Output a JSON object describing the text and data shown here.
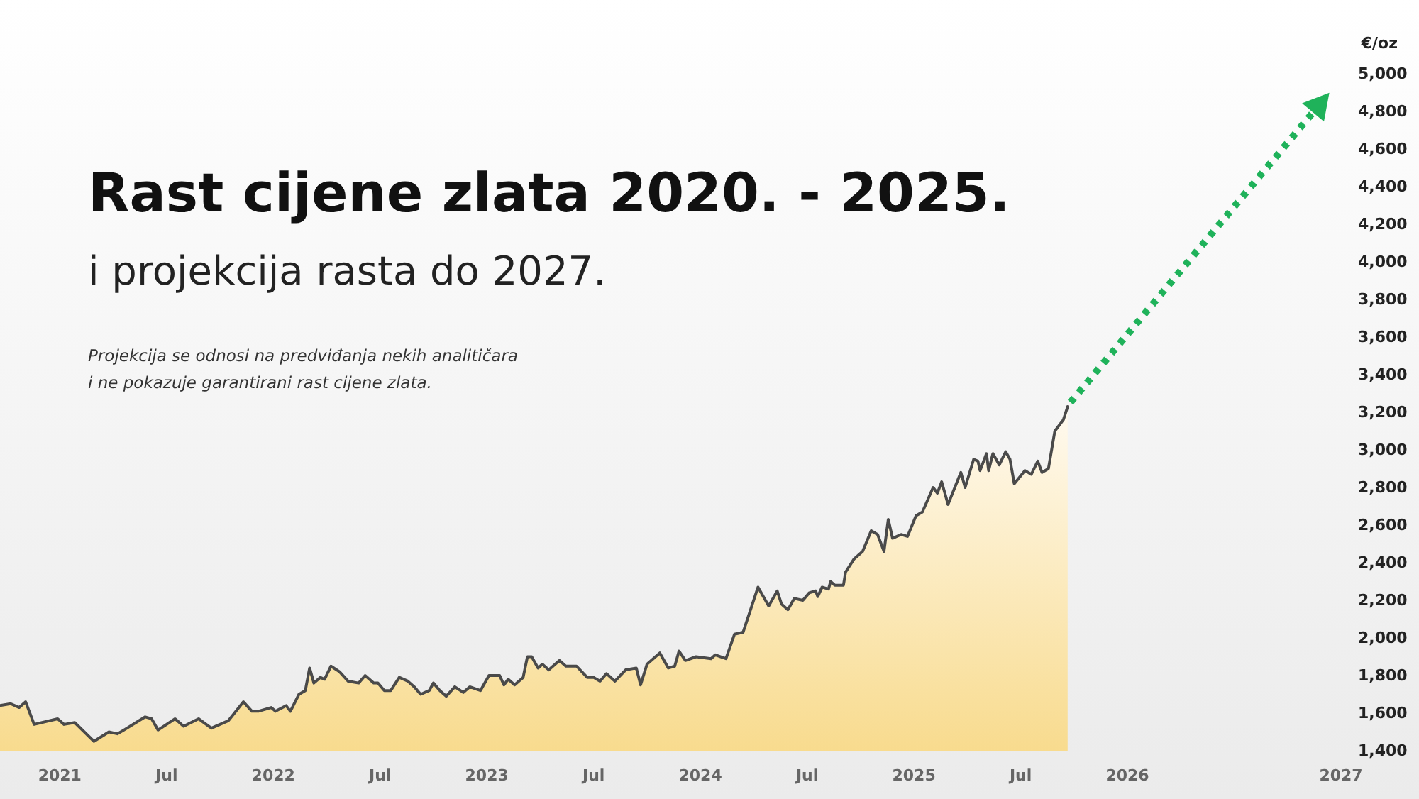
{
  "chart_data": {
    "type": "area",
    "title": "Rast cijene zlata 2020. - 2025.",
    "subtitle": "i projekcija rasta do 2027.",
    "annotations": [
      "Projekcija se odnosi na predviđanja nekih analitičara\ni ne pokazuje garantirani rast cijene zlata."
    ],
    "ylabel": "€/oz",
    "xlim": [
      2020.72,
      2027
    ],
    "xticks": [
      {
        "value": 2021,
        "label": "2021"
      },
      {
        "value": 2021.5,
        "label": "Jul"
      },
      {
        "value": 2022,
        "label": "2022"
      },
      {
        "value": 2022.5,
        "label": "Jul"
      },
      {
        "value": 2023,
        "label": "2023"
      },
      {
        "value": 2023.5,
        "label": "Jul"
      },
      {
        "value": 2024,
        "label": "2024"
      },
      {
        "value": 2024.5,
        "label": "Jul"
      },
      {
        "value": 2025,
        "label": "2025"
      },
      {
        "value": 2025.5,
        "label": "Jul"
      },
      {
        "value": 2026,
        "label": "2026"
      },
      {
        "value": 2027,
        "label": "2027"
      }
    ],
    "ylim": [
      1400,
      5000
    ],
    "yticks": [
      {
        "value": 1400,
        "label": "1,400"
      },
      {
        "value": 1600,
        "label": "1,600"
      },
      {
        "value": 1800,
        "label": "1,800"
      },
      {
        "value": 2000,
        "label": "2,000"
      },
      {
        "value": 2200,
        "label": "2,200"
      },
      {
        "value": 2400,
        "label": "2,400"
      },
      {
        "value": 2600,
        "label": "2,600"
      },
      {
        "value": 2800,
        "label": "2,800"
      },
      {
        "value": 3000,
        "label": "3,000"
      },
      {
        "value": 3200,
        "label": "3,200"
      },
      {
        "value": 3400,
        "label": "3,400"
      },
      {
        "value": 3600,
        "label": "3,600"
      },
      {
        "value": 3800,
        "label": "3,800"
      },
      {
        "value": 4000,
        "label": "4,000"
      },
      {
        "value": 4200,
        "label": "4,200"
      },
      {
        "value": 4400,
        "label": "4,400"
      },
      {
        "value": 4600,
        "label": "4,600"
      },
      {
        "value": 4800,
        "label": "4,800"
      },
      {
        "value": 5000,
        "label": "5,000"
      }
    ],
    "grid": false,
    "marker": "none",
    "series": [
      {
        "color": "#4a4a4a",
        "x": [
          2020.72,
          2020.77,
          2020.81,
          2020.84,
          2020.88,
          2020.99,
          2021.02,
          2021.07,
          2021.16,
          2021.23,
          2021.27,
          2021.3,
          2021.4,
          2021.43,
          2021.46,
          2021.54,
          2021.58,
          2021.65,
          2021.71,
          2021.79,
          2021.86,
          2021.9,
          2021.93,
          2021.99,
          2022.01,
          2022.06,
          2022.08,
          2022.12,
          2022.15,
          2022.17,
          2022.19,
          2022.22,
          2022.24,
          2022.27,
          2022.31,
          2022.35,
          2022.4,
          2022.43,
          2022.47,
          2022.49,
          2022.52,
          2022.55,
          2022.59,
          2022.63,
          2022.66,
          2022.69,
          2022.73,
          2022.75,
          2022.78,
          2022.81,
          2022.85,
          2022.89,
          2022.92,
          2022.97,
          2023.01,
          2023.06,
          2023.08,
          2023.1,
          2023.13,
          2023.17,
          2023.19,
          2023.21,
          2023.24,
          2023.26,
          2023.29,
          2023.34,
          2023.37,
          2023.42,
          2023.47,
          2023.5,
          2023.53,
          2023.56,
          2023.6,
          2023.65,
          2023.7,
          2023.72,
          2023.75,
          2023.81,
          2023.85,
          2023.88,
          2023.9,
          2023.93,
          2023.98,
          2024.05,
          2024.07,
          2024.12,
          2024.16,
          2024.2,
          2024.27,
          2024.32,
          2024.36,
          2024.38,
          2024.41,
          2024.44,
          2024.48,
          2024.51,
          2024.54,
          2024.55,
          2024.57,
          2024.6,
          2024.61,
          2024.63,
          2024.67,
          2024.68,
          2024.72,
          2024.76,
          2024.8,
          2024.83,
          2024.86,
          2024.88,
          2024.9,
          2024.94,
          2024.97,
          2025.01,
          2025.04,
          2025.09,
          2025.11,
          2025.13,
          2025.16,
          2025.22,
          2025.24,
          2025.28,
          2025.3,
          2025.31,
          2025.34,
          2025.35,
          2025.37,
          2025.4,
          2025.43,
          2025.45,
          2025.47,
          2025.52,
          2025.55,
          2025.58,
          2025.6,
          2025.63,
          2025.66,
          2025.7,
          2025.72
        ],
        "values": [
          1640,
          1650,
          1630,
          1660,
          1540,
          1570,
          1540,
          1550,
          1450,
          1500,
          1490,
          1510,
          1580,
          1570,
          1510,
          1570,
          1530,
          1570,
          1520,
          1560,
          1660,
          1610,
          1610,
          1630,
          1610,
          1640,
          1610,
          1700,
          1720,
          1840,
          1760,
          1790,
          1780,
          1850,
          1820,
          1770,
          1760,
          1800,
          1760,
          1760,
          1720,
          1720,
          1790,
          1770,
          1740,
          1700,
          1720,
          1760,
          1720,
          1690,
          1740,
          1710,
          1740,
          1720,
          1800,
          1800,
          1750,
          1780,
          1750,
          1790,
          1900,
          1900,
          1840,
          1860,
          1830,
          1880,
          1850,
          1850,
          1790,
          1790,
          1770,
          1810,
          1770,
          1830,
          1840,
          1750,
          1860,
          1920,
          1840,
          1850,
          1930,
          1880,
          1900,
          1890,
          1910,
          1890,
          2020,
          2030,
          2270,
          2170,
          2250,
          2180,
          2150,
          2210,
          2200,
          2240,
          2250,
          2220,
          2270,
          2260,
          2300,
          2280,
          2280,
          2350,
          2420,
          2460,
          2570,
          2550,
          2460,
          2630,
          2530,
          2550,
          2540,
          2650,
          2670,
          2800,
          2770,
          2830,
          2710,
          2880,
          2800,
          2950,
          2940,
          2890,
          2980,
          2890,
          2980,
          2920,
          2990,
          2950,
          2820,
          2890,
          2870,
          2940,
          2880,
          2900,
          3100,
          3160,
          3230
        ]
      }
    ]
  }
}
